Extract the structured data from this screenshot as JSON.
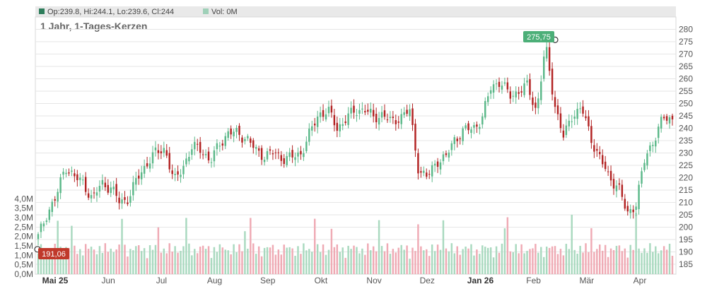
{
  "legend": {
    "ohlc_text": "Op:239.8, Hi:244.1, Lo:239.6, Cl:244",
    "vol_text": "Vol: 0M",
    "ohlc_swatch_color": "#2e7d5b",
    "vol_swatch_color": "#9fd0b8"
  },
  "title": "1 Jahr, 1-Tages-Kerzen",
  "colors": {
    "up": "#5bb889",
    "down": "#b22222",
    "vol_up": "#a9d9bf",
    "vol_down": "#efaab4",
    "grid": "#e6e6e6",
    "axis_text": "#555555",
    "max_badge": "#4caf78",
    "min_badge": "#c0392b"
  },
  "chart_data": {
    "type": "candlestick",
    "title": "1 Jahr, 1-Tages-Kerzen",
    "y_price_range": [
      181,
      285
    ],
    "y_price_ticks": [
      185,
      190,
      195,
      200,
      205,
      210,
      215,
      220,
      225,
      230,
      235,
      240,
      245,
      250,
      255,
      260,
      265,
      270,
      275,
      280
    ],
    "y_volume_range": [
      0,
      4.5
    ],
    "y_volume_ticks": [
      {
        "v": 0,
        "label": "0,0M"
      },
      {
        "v": 0.5,
        "label": "0,5M"
      },
      {
        "v": 1.0,
        "label": "1,0M"
      },
      {
        "v": 1.5,
        "label": "1,5M"
      },
      {
        "v": 2.0,
        "label": "2,0M"
      },
      {
        "v": 2.5,
        "label": "2,5M"
      },
      {
        "v": 3.0,
        "label": "3,0M"
      },
      {
        "v": 3.5,
        "label": "3,5M"
      },
      {
        "v": 4.0,
        "label": "4,0M"
      }
    ],
    "x_labels": [
      "Mai 25",
      "Jun",
      "Jul",
      "Aug",
      "Sep",
      "Okt",
      "Nov",
      "Dez",
      "Jan 26",
      "Feb",
      "Mär",
      "Apr"
    ],
    "x_labels_bold": [
      "Mai 25",
      "Jan 26"
    ],
    "max": {
      "value": 275.75,
      "label": "275,75"
    },
    "min": {
      "value": 191.06,
      "label": "191,06"
    },
    "grid": true,
    "close_anchors": [
      196,
      206,
      212,
      225,
      220,
      218,
      211,
      218,
      216,
      210,
      212,
      220,
      226,
      230,
      232,
      218,
      225,
      232,
      232,
      226,
      234,
      238,
      238,
      236,
      231,
      229,
      230,
      228,
      228,
      230,
      238,
      246,
      247,
      240,
      244,
      247,
      248,
      244,
      246,
      242,
      245,
      247,
      223,
      220,
      227,
      228,
      236,
      239,
      240,
      244,
      257,
      259,
      253,
      255,
      257,
      247,
      273,
      250,
      236,
      246,
      248,
      236,
      228,
      220,
      217,
      205,
      210,
      228,
      236,
      244,
      244
    ]
  }
}
